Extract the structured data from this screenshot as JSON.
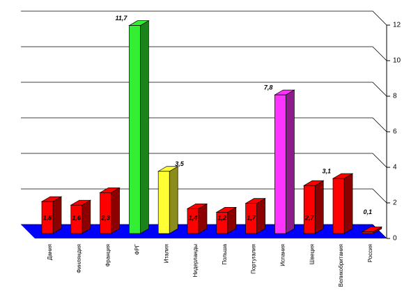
{
  "chart_data": {
    "type": "bar3d",
    "categories": [
      "Дания",
      "Финляндия",
      "Франция",
      "ФРГ",
      "Италия",
      "Нидерланды",
      "Польша",
      "Португалия",
      "Испания",
      "Швеция",
      "Великобритания",
      "Россия"
    ],
    "values": [
      1.8,
      1.6,
      2.3,
      11.7,
      3.5,
      1.4,
      1.2,
      1.7,
      7.8,
      2.7,
      3.1,
      0.1
    ],
    "value_labels": [
      "1,8",
      "1,6",
      "2,3",
      "11,7",
      "3,5",
      "1,4",
      "1,2",
      "1,7",
      "7,8",
      "2,7",
      "3,1",
      "0,1"
    ],
    "colors": [
      "#ff0000",
      "#ff0000",
      "#ff0000",
      "#33ee33",
      "#ffff33",
      "#ff0000",
      "#ff0000",
      "#ff0000",
      "#ff33ff",
      "#ff0000",
      "#ff0000",
      "#ff0000"
    ],
    "ylim": [
      0,
      12
    ],
    "yticks": [
      0,
      2,
      4,
      6,
      8,
      10,
      12
    ],
    "grid": true,
    "floor_color": "#0000ff"
  }
}
